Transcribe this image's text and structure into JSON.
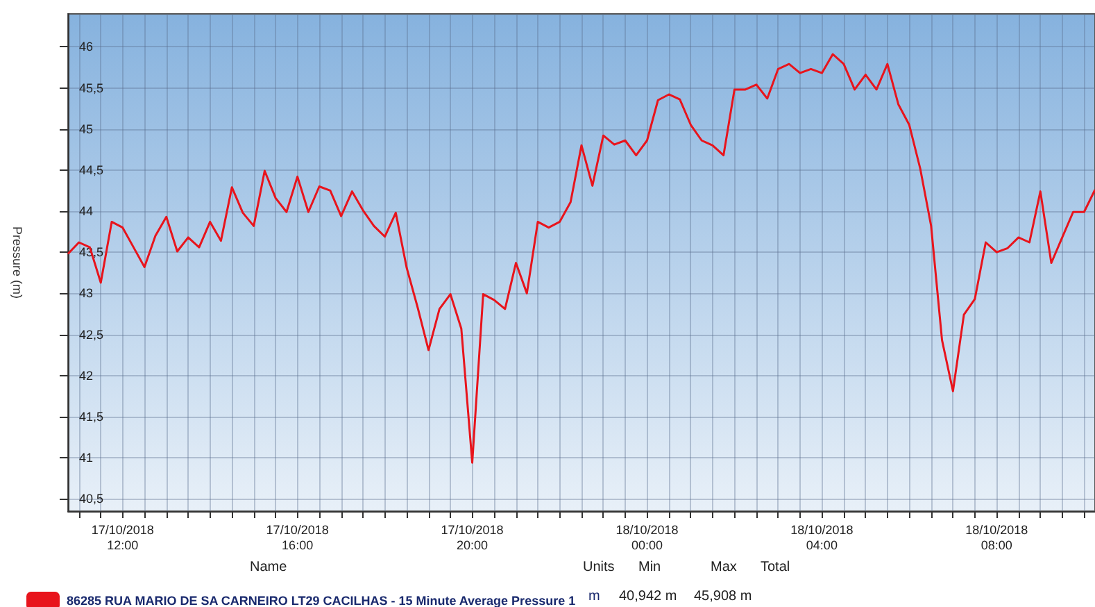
{
  "chart_data": {
    "type": "line",
    "ylabel": "Pressure (m)",
    "xlim": [
      "2018-10-17T10:45",
      "2018-10-18T10:15"
    ],
    "ylim": [
      40.35,
      46.4
    ],
    "xticks": [
      {
        "value": "2018-10-17T11:00",
        "label": null
      },
      {
        "value": "2018-10-17T11:30",
        "label": null
      },
      {
        "value": "2018-10-17T12:00",
        "label": "17/10/2018\n12:00"
      },
      {
        "value": "2018-10-17T12:30",
        "label": null
      },
      {
        "value": "2018-10-17T13:00",
        "label": null
      },
      {
        "value": "2018-10-17T13:30",
        "label": null
      },
      {
        "value": "2018-10-17T14:00",
        "label": null
      },
      {
        "value": "2018-10-17T14:30",
        "label": null
      },
      {
        "value": "2018-10-17T15:00",
        "label": null
      },
      {
        "value": "2018-10-17T15:30",
        "label": null
      },
      {
        "value": "2018-10-17T16:00",
        "label": "17/10/2018\n16:00"
      },
      {
        "value": "2018-10-17T16:30",
        "label": null
      },
      {
        "value": "2018-10-17T17:00",
        "label": null
      },
      {
        "value": "2018-10-17T17:30",
        "label": null
      },
      {
        "value": "2018-10-17T18:00",
        "label": null
      },
      {
        "value": "2018-10-17T18:30",
        "label": null
      },
      {
        "value": "2018-10-17T19:00",
        "label": null
      },
      {
        "value": "2018-10-17T19:30",
        "label": null
      },
      {
        "value": "2018-10-17T20:00",
        "label": "17/10/2018\n20:00"
      },
      {
        "value": "2018-10-17T20:30",
        "label": null
      },
      {
        "value": "2018-10-17T21:00",
        "label": null
      },
      {
        "value": "2018-10-17T21:30",
        "label": null
      },
      {
        "value": "2018-10-17T22:00",
        "label": null
      },
      {
        "value": "2018-10-17T22:30",
        "label": null
      },
      {
        "value": "2018-10-17T23:00",
        "label": null
      },
      {
        "value": "2018-10-17T23:30",
        "label": null
      },
      {
        "value": "2018-10-18T00:00",
        "label": "18/10/2018\n00:00"
      },
      {
        "value": "2018-10-18T00:30",
        "label": null
      },
      {
        "value": "2018-10-18T01:00",
        "label": null
      },
      {
        "value": "2018-10-18T01:30",
        "label": null
      },
      {
        "value": "2018-10-18T02:00",
        "label": null
      },
      {
        "value": "2018-10-18T02:30",
        "label": null
      },
      {
        "value": "2018-10-18T03:00",
        "label": null
      },
      {
        "value": "2018-10-18T03:30",
        "label": null
      },
      {
        "value": "2018-10-18T04:00",
        "label": "18/10/2018\n04:00"
      },
      {
        "value": "2018-10-18T04:30",
        "label": null
      },
      {
        "value": "2018-10-18T05:00",
        "label": null
      },
      {
        "value": "2018-10-18T05:30",
        "label": null
      },
      {
        "value": "2018-10-18T06:00",
        "label": null
      },
      {
        "value": "2018-10-18T06:30",
        "label": null
      },
      {
        "value": "2018-10-18T07:00",
        "label": null
      },
      {
        "value": "2018-10-18T07:30",
        "label": null
      },
      {
        "value": "2018-10-18T08:00",
        "label": "18/10/2018\n08:00"
      },
      {
        "value": "2018-10-18T08:30",
        "label": null
      },
      {
        "value": "2018-10-18T09:00",
        "label": null
      },
      {
        "value": "2018-10-18T09:30",
        "label": null
      },
      {
        "value": "2018-10-18T10:00",
        "label": null
      }
    ],
    "yticks": [
      {
        "value": 40.5,
        "label": "40,5"
      },
      {
        "value": 41,
        "label": "41"
      },
      {
        "value": 41.5,
        "label": "41,5"
      },
      {
        "value": 42,
        "label": "42"
      },
      {
        "value": 42.5,
        "label": "42,5"
      },
      {
        "value": 43,
        "label": "43"
      },
      {
        "value": 43.5,
        "label": "43,5"
      },
      {
        "value": 44,
        "label": "44"
      },
      {
        "value": 44.5,
        "label": "44,5"
      },
      {
        "value": 45,
        "label": "45"
      },
      {
        "value": 45.5,
        "label": "45,5"
      },
      {
        "value": 46,
        "label": "46"
      }
    ],
    "grid": true,
    "legend": "bottom left",
    "marker": "none",
    "line_style": "solid",
    "annotations": [
      "Name",
      "Units",
      "Min",
      "Max",
      "Total",
      "m",
      "40,942 m",
      "45,908 m"
    ],
    "series": [
      {
        "name": "86285 RUA MARIO DE SA CARNEIRO LT29 CACILHAS - 15 Minute Average Pressure 1",
        "color": "#e8141c",
        "x": [
          "2018-10-17T10:45",
          "2018-10-17T11:00",
          "2018-10-17T11:15",
          "2018-10-17T11:30",
          "2018-10-17T11:45",
          "2018-10-17T12:00",
          "2018-10-17T12:15",
          "2018-10-17T12:30",
          "2018-10-17T12:45",
          "2018-10-17T13:00",
          "2018-10-17T13:15",
          "2018-10-17T13:30",
          "2018-10-17T13:45",
          "2018-10-17T14:00",
          "2018-10-17T14:15",
          "2018-10-17T14:30",
          "2018-10-17T14:45",
          "2018-10-17T15:00",
          "2018-10-17T15:15",
          "2018-10-17T15:30",
          "2018-10-17T15:45",
          "2018-10-17T16:00",
          "2018-10-17T16:15",
          "2018-10-17T16:30",
          "2018-10-17T16:45",
          "2018-10-17T17:00",
          "2018-10-17T17:15",
          "2018-10-17T17:30",
          "2018-10-17T17:45",
          "2018-10-17T18:00",
          "2018-10-17T18:15",
          "2018-10-17T18:30",
          "2018-10-17T18:45",
          "2018-10-17T19:00",
          "2018-10-17T19:15",
          "2018-10-17T19:30",
          "2018-10-17T19:45",
          "2018-10-17T20:00",
          "2018-10-17T20:15",
          "2018-10-17T20:30",
          "2018-10-17T20:45",
          "2018-10-17T21:00",
          "2018-10-17T21:15",
          "2018-10-17T21:30",
          "2018-10-17T21:45",
          "2018-10-17T22:00",
          "2018-10-17T22:15",
          "2018-10-17T22:30",
          "2018-10-17T22:45",
          "2018-10-17T23:00",
          "2018-10-17T23:15",
          "2018-10-17T23:30",
          "2018-10-17T23:45",
          "2018-10-18T00:00",
          "2018-10-18T00:15",
          "2018-10-18T00:30",
          "2018-10-18T00:45",
          "2018-10-18T01:00",
          "2018-10-18T01:15",
          "2018-10-18T01:30",
          "2018-10-18T01:45",
          "2018-10-18T02:00",
          "2018-10-18T02:15",
          "2018-10-18T02:30",
          "2018-10-18T02:45",
          "2018-10-18T03:00",
          "2018-10-18T03:15",
          "2018-10-18T03:30",
          "2018-10-18T03:45",
          "2018-10-18T04:00",
          "2018-10-18T04:15",
          "2018-10-18T04:30",
          "2018-10-18T04:45",
          "2018-10-18T05:00",
          "2018-10-18T05:15",
          "2018-10-18T05:30",
          "2018-10-18T05:45",
          "2018-10-18T06:00",
          "2018-10-18T06:15",
          "2018-10-18T06:30",
          "2018-10-18T06:45",
          "2018-10-18T07:00",
          "2018-10-18T07:15",
          "2018-10-18T07:30",
          "2018-10-18T07:45",
          "2018-10-18T08:00",
          "2018-10-18T08:15",
          "2018-10-18T08:30",
          "2018-10-18T08:45",
          "2018-10-18T09:00",
          "2018-10-18T09:15",
          "2018-10-18T09:30",
          "2018-10-18T09:45",
          "2018-10-18T10:00",
          "2018-10-18T10:15"
        ],
        "values": [
          43.48,
          43.62,
          43.56,
          43.13,
          43.87,
          43.8,
          43.56,
          43.32,
          43.7,
          43.93,
          43.51,
          43.68,
          43.56,
          43.87,
          43.64,
          44.29,
          43.98,
          43.82,
          44.49,
          44.16,
          43.99,
          44.42,
          43.99,
          44.3,
          44.25,
          43.94,
          44.24,
          44.01,
          43.82,
          43.69,
          43.98,
          43.31,
          42.83,
          42.31,
          42.81,
          42.99,
          42.57,
          40.94,
          42.99,
          42.92,
          42.81,
          43.37,
          43.0,
          43.87,
          43.8,
          43.87,
          44.11,
          44.8,
          44.31,
          44.92,
          44.81,
          44.86,
          44.68,
          44.86,
          45.35,
          45.42,
          45.36,
          45.05,
          44.86,
          44.8,
          44.68,
          45.48,
          45.48,
          45.54,
          45.37,
          45.73,
          45.79,
          45.68,
          45.73,
          45.68,
          45.91,
          45.79,
          45.48,
          45.66,
          45.48,
          45.79,
          45.3,
          45.05,
          44.52,
          43.82,
          42.43,
          41.81,
          42.74,
          42.93,
          43.62,
          43.5,
          43.55,
          43.68,
          43.62,
          44.24,
          43.37,
          43.68,
          43.99,
          43.99,
          44.26
        ]
      }
    ]
  }
}
